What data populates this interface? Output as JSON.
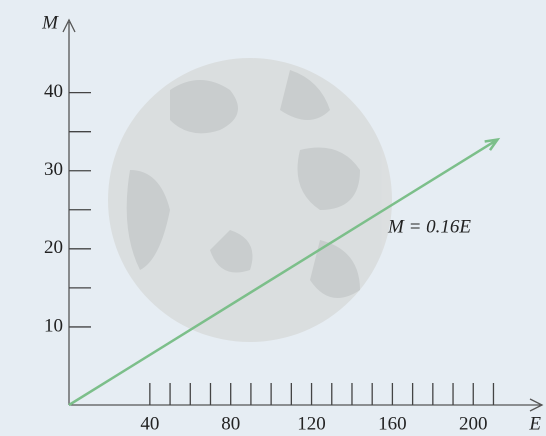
{
  "chart_data": {
    "type": "line",
    "x_label": "E",
    "y_label": "M",
    "annotation": "M = 0.16E",
    "x": [
      0,
      212
    ],
    "values": [
      0,
      34
    ],
    "color": "#7cbf8a",
    "xlim": [
      0,
      235
    ],
    "ylim": [
      0,
      47
    ],
    "xticks": [
      40,
      80,
      120,
      160,
      200
    ],
    "xticks_minor": [
      50,
      60,
      70,
      90,
      100,
      110,
      130,
      140,
      150,
      170,
      180,
      190,
      210
    ],
    "yticks": [
      10,
      20,
      30,
      40
    ],
    "yticks_minor": [
      15,
      25,
      35
    ]
  }
}
